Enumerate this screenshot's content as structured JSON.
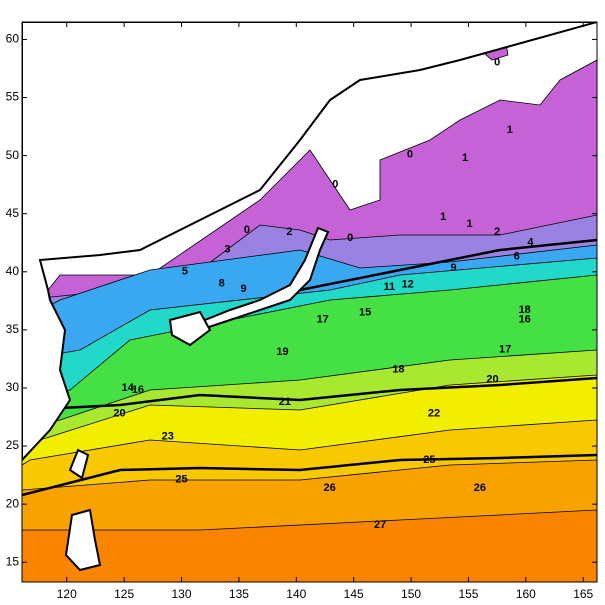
{
  "map": {
    "type": "contour",
    "xlim": [
      116.1,
      166.2
    ],
    "ylim": [
      13.3,
      61.5
    ],
    "xticks": [
      120,
      125,
      130,
      135,
      140,
      145,
      150,
      155,
      160,
      165
    ],
    "yticks": [
      15,
      20,
      25,
      30,
      35,
      40,
      45,
      50,
      55,
      60
    ],
    "contour_labels": {
      "values": [
        0,
        0,
        1,
        1,
        0,
        0,
        1,
        1,
        2,
        4,
        3,
        2,
        0,
        5,
        8,
        9,
        9,
        6,
        11,
        12,
        15,
        17,
        16,
        18,
        19,
        18,
        17,
        20,
        21,
        22,
        20,
        23,
        25,
        25,
        26,
        26,
        27,
        14,
        16
      ],
      "lon": [
        157.5,
        149.9,
        154.7,
        158.6,
        143.4,
        135.7,
        152.8,
        155.1,
        157.5,
        160.4,
        134.0,
        139.4,
        144.7,
        130.3,
        133.5,
        135.4,
        153.7,
        159.2,
        148.1,
        149.7,
        146.0,
        142.3,
        159.9,
        159.9,
        138.8,
        148.9,
        158.2,
        157.1,
        139.0,
        152.0,
        124.6,
        128.8,
        130.0,
        151.6,
        142.9,
        156.0,
        147.3,
        125.3,
        126.2
      ],
      "lat": [
        58.0,
        50.1,
        49.8,
        52.2,
        47.5,
        43.6,
        44.7,
        44.1,
        43.4,
        42.5,
        41.9,
        43.4,
        42.9,
        40.0,
        39.0,
        38.5,
        40.3,
        41.3,
        38.7,
        38.9,
        36.5,
        35.9,
        35.9,
        36.7,
        33.1,
        31.6,
        33.3,
        30.7,
        28.8,
        27.8,
        27.8,
        25.8,
        22.1,
        23.8,
        21.4,
        21.4,
        18.2,
        30.0,
        29.8
      ]
    }
  }
}
